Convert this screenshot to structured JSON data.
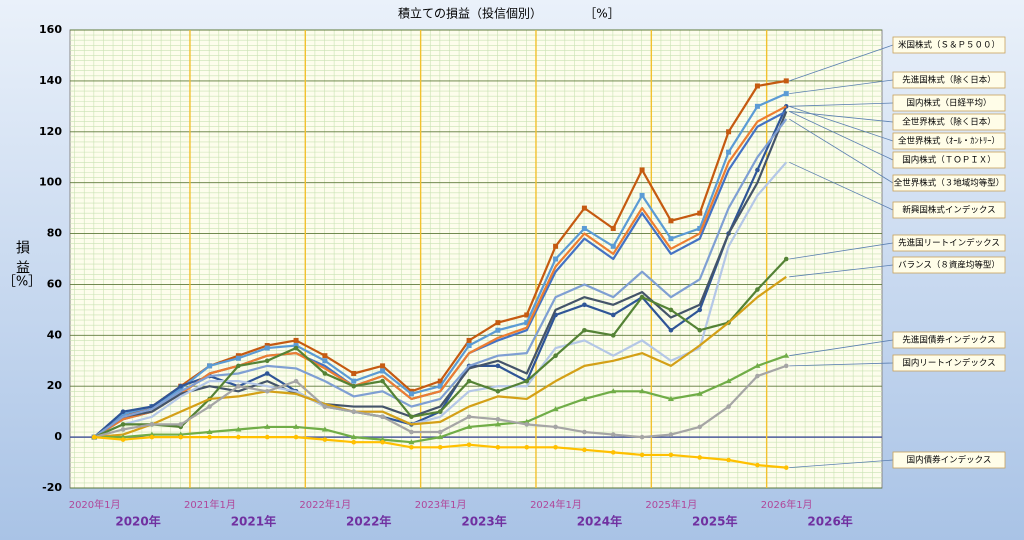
{
  "chart_data": {
    "type": "line",
    "title": "積立ての損益（投信個別）",
    "title_unit": "［%］",
    "y_label": "損益",
    "y_unit": "［%］",
    "x": [
      2020.17,
      2020.42,
      2020.67,
      2020.92,
      2021.17,
      2021.42,
      2021.67,
      2021.92,
      2022.17,
      2022.42,
      2022.67,
      2022.92,
      2023.17,
      2023.42,
      2023.67,
      2023.92,
      2024.17,
      2024.42,
      2024.67,
      2024.92,
      2025.17,
      2025.42,
      2025.67,
      2025.92,
      2026.17
    ],
    "xlim": [
      2019.96,
      2027
    ],
    "xticks": [
      {
        "value": 2020,
        "label": "2020年1月"
      },
      {
        "value": 2021,
        "label": "2021年1月"
      },
      {
        "value": 2022,
        "label": "2022年1月"
      },
      {
        "value": 2023,
        "label": "2023年1月"
      },
      {
        "value": 2024,
        "label": "2024年1月"
      },
      {
        "value": 2025,
        "label": "2025年1月"
      },
      {
        "value": 2026,
        "label": "2026年1月"
      }
    ],
    "year_labels": [
      "2020年",
      "2021年",
      "2022年",
      "2023年",
      "2024年",
      "2025年",
      "2026年"
    ],
    "ylim": [
      -20,
      160
    ],
    "yticks": [
      -20,
      0,
      20,
      40,
      60,
      80,
      100,
      120,
      140,
      160
    ],
    "grid": true,
    "minor_grid": true,
    "series": [
      {
        "name": "米国株式（Ｓ＆Ｐ５００）",
        "color": "#c55a11",
        "marker": "square",
        "values": [
          0,
          8,
          12,
          20,
          28,
          32,
          36,
          38,
          32,
          25,
          28,
          18,
          22,
          38,
          45,
          48,
          75,
          90,
          82,
          105,
          85,
          88,
          120,
          138,
          140
        ]
      },
      {
        "name": "先進国株式（除く日本）",
        "color": "#5b9bd5",
        "marker": "square",
        "values": [
          0,
          9,
          12,
          19,
          28,
          31,
          35,
          36,
          30,
          22,
          26,
          17,
          20,
          36,
          42,
          45,
          70,
          82,
          75,
          95,
          78,
          82,
          112,
          130,
          135
        ]
      },
      {
        "name": "国内株式（日経平均）",
        "color": "#2f5597",
        "marker": "circle",
        "values": [
          0,
          10,
          12,
          20,
          24,
          20,
          25,
          18,
          12,
          10,
          8,
          5,
          10,
          28,
          28,
          22,
          48,
          52,
          48,
          55,
          42,
          50,
          80,
          105,
          130
        ]
      },
      {
        "name": "全世界株式（除く日本）",
        "color": "#4472c4",
        "marker": "none",
        "values": [
          0,
          7,
          10,
          17,
          25,
          28,
          32,
          33,
          28,
          20,
          24,
          15,
          18,
          33,
          38,
          42,
          65,
          78,
          70,
          88,
          72,
          78,
          105,
          122,
          128
        ]
      },
      {
        "name": "全世界株式（ｵｰﾙ・ｶﾝﾄﾘｰ）",
        "color": "#ed7d31",
        "marker": "none",
        "values": [
          0,
          7,
          10,
          17,
          25,
          28,
          32,
          33,
          27,
          20,
          24,
          15,
          18,
          33,
          39,
          43,
          67,
          80,
          72,
          90,
          74,
          80,
          108,
          124,
          130
        ]
      },
      {
        "name": "国内株式（ＴＯＰＩＸ）",
        "color": "#44546a",
        "marker": "none",
        "values": [
          0,
          8,
          10,
          17,
          20,
          18,
          22,
          17,
          13,
          12,
          12,
          8,
          12,
          27,
          30,
          25,
          50,
          55,
          52,
          57,
          47,
          52,
          80,
          100,
          128
        ]
      },
      {
        "name": "全世界株式（３地域均等型）",
        "color": "#7f9fd3",
        "marker": "none",
        "values": [
          0,
          8,
          11,
          18,
          24,
          25,
          28,
          27,
          22,
          16,
          18,
          12,
          15,
          28,
          32,
          33,
          55,
          60,
          55,
          65,
          55,
          62,
          90,
          110,
          125
        ]
      },
      {
        "name": "新興国株式インデックス",
        "color": "#b4c7e7",
        "marker": "none",
        "values": [
          0,
          5,
          8,
          16,
          22,
          22,
          20,
          18,
          12,
          10,
          10,
          5,
          8,
          18,
          20,
          20,
          35,
          38,
          32,
          38,
          30,
          35,
          75,
          95,
          108
        ]
      },
      {
        "name": "先進国リートインデックス",
        "color": "#548235",
        "marker": "circle",
        "values": [
          0,
          5,
          5,
          4,
          15,
          28,
          30,
          35,
          25,
          20,
          22,
          8,
          10,
          22,
          18,
          22,
          32,
          42,
          40,
          55,
          50,
          42,
          45,
          58,
          70
        ]
      },
      {
        "name": "バランス（８資産均等型）",
        "color": "#d4a017",
        "marker": "none",
        "values": [
          0,
          1,
          5,
          10,
          15,
          16,
          18,
          17,
          13,
          10,
          10,
          5,
          6,
          12,
          16,
          15,
          22,
          28,
          30,
          33,
          28,
          36,
          45,
          55,
          63
        ]
      },
      {
        "name": "先進国債券インデックス",
        "color": "#70ad47",
        "marker": "triangle",
        "values": [
          0,
          0,
          1,
          1,
          2,
          3,
          4,
          4,
          3,
          0,
          -1,
          -2,
          0,
          4,
          5,
          6,
          11,
          15,
          18,
          18,
          15,
          17,
          22,
          28,
          32
        ]
      },
      {
        "name": "国内リートインデックス",
        "color": "#a5a5a5",
        "marker": "circle",
        "values": [
          0,
          3,
          5,
          5,
          12,
          20,
          18,
          22,
          12,
          10,
          8,
          2,
          2,
          8,
          7,
          5,
          4,
          2,
          1,
          0,
          1,
          4,
          12,
          24,
          28
        ]
      },
      {
        "name": "国内債券インデックス",
        "color": "#ffc000",
        "marker": "circle",
        "values": [
          0,
          -1,
          0,
          0,
          0,
          0,
          0,
          0,
          -1,
          -2,
          -2,
          -4,
          -4,
          -3,
          -4,
          -4,
          -4,
          -5,
          -6,
          -7,
          -7,
          -8,
          -9,
          -11,
          -12
        ]
      }
    ]
  }
}
